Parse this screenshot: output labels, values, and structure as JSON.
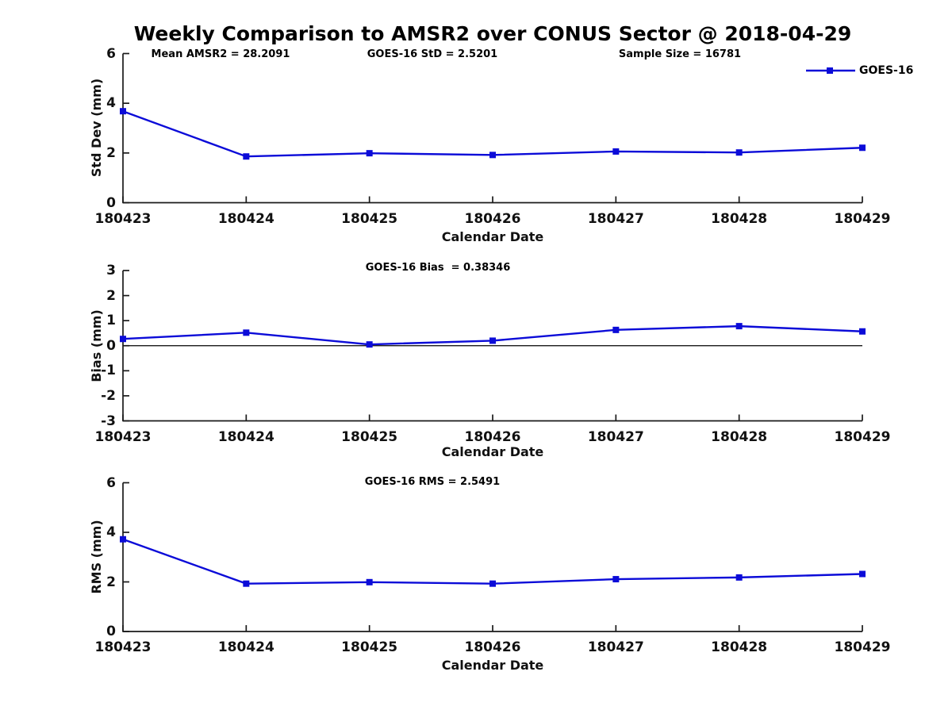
{
  "title": "Weekly Comparison to AMSR2 over CONUS Sector @ 2018-04-29",
  "legend": {
    "label": "GOES-16",
    "color": "#0b0bd8"
  },
  "axis_color": "#1a1a1a",
  "chart_data": [
    {
      "id": "std-dev",
      "type": "line",
      "xlabel": "Calendar Date",
      "ylabel": "Std Dev (mm)",
      "categories": [
        "180423",
        "180424",
        "180425",
        "180426",
        "180427",
        "180428",
        "180429"
      ],
      "series": [
        {
          "name": "GOES-16",
          "values": [
            3.68,
            1.86,
            1.99,
            1.92,
            2.06,
            2.02,
            2.21
          ]
        }
      ],
      "ylim": [
        0,
        6
      ],
      "yticks": [
        0,
        2,
        4,
        6
      ],
      "annotations": [
        "Mean AMSR2 = 28.2091",
        "GOES-16 StD = 2.5201",
        "Sample Size = 16781"
      ],
      "zero_line": false,
      "legend_position": "top-right-outside",
      "grid": false
    },
    {
      "id": "bias",
      "type": "line",
      "xlabel": "Calendar Date",
      "ylabel": "Bias (mm)",
      "categories": [
        "180423",
        "180424",
        "180425",
        "180426",
        "180427",
        "180428",
        "180429"
      ],
      "series": [
        {
          "name": "GOES-16",
          "values": [
            0.27,
            0.52,
            0.05,
            0.2,
            0.63,
            0.78,
            0.57
          ]
        }
      ],
      "ylim": [
        -3,
        3
      ],
      "yticks": [
        -3,
        -2,
        -1,
        0,
        1,
        2,
        3
      ],
      "annotations": [
        "GOES-16 Bias  = 0.38346"
      ],
      "zero_line": true,
      "grid": false
    },
    {
      "id": "rms",
      "type": "line",
      "xlabel": "Calendar Date",
      "ylabel": "RMS (mm)",
      "categories": [
        "180423",
        "180424",
        "180425",
        "180426",
        "180427",
        "180428",
        "180429"
      ],
      "series": [
        {
          "name": "GOES-16",
          "values": [
            3.72,
            1.93,
            1.99,
            1.93,
            2.11,
            2.18,
            2.32
          ]
        }
      ],
      "ylim": [
        0,
        6
      ],
      "yticks": [
        0,
        2,
        4,
        6
      ],
      "annotations": [
        "GOES-16 RMS = 2.5491"
      ],
      "zero_line": false,
      "grid": false
    }
  ]
}
